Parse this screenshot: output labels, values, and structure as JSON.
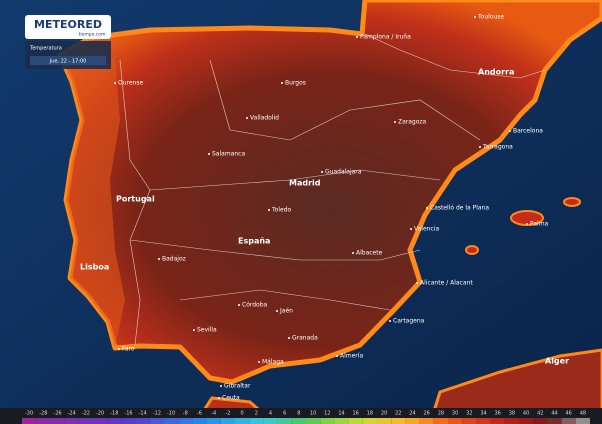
{
  "logo": {
    "name": "METEORED",
    "site": "tiempo.com"
  },
  "panel": {
    "variable": "Temperatura",
    "time": "Jue, 22 - 17:00"
  },
  "places": [
    "Toulouse",
    "Pamplona / Iruña",
    "Andorra",
    "Burgos",
    "Ourense",
    "Valladolid",
    "Zaragoza",
    "Barcelona",
    "Tarragona",
    "Salamanca",
    "Guadalajara",
    "Madrid",
    "Portugal",
    "Toledo",
    "Castelló de la Plana",
    "Palma",
    "España",
    "Valencia",
    "Lisboa",
    "Badajoz",
    "Albacete",
    "Alicante / Alacant",
    "Córdoba",
    "Jaén",
    "Cartagena",
    "Sevilla",
    "Granada",
    "Faro",
    "Almería",
    "Málaga",
    "Alger",
    "Gibraltar",
    "Ceuta"
  ],
  "scale": {
    "labels": [
      "-30",
      "-28",
      "-26",
      "-24",
      "-22",
      "-20",
      "-18",
      "-16",
      "-14",
      "-12",
      "-10",
      "-8",
      "-6",
      "-4",
      "-2",
      "0",
      "2",
      "4",
      "6",
      "8",
      "10",
      "12",
      "14",
      "16",
      "18",
      "20",
      "22",
      "24",
      "26",
      "28",
      "30",
      "32",
      "34",
      "36",
      "38",
      "40",
      "42",
      "44",
      "46",
      "48"
    ]
  }
}
